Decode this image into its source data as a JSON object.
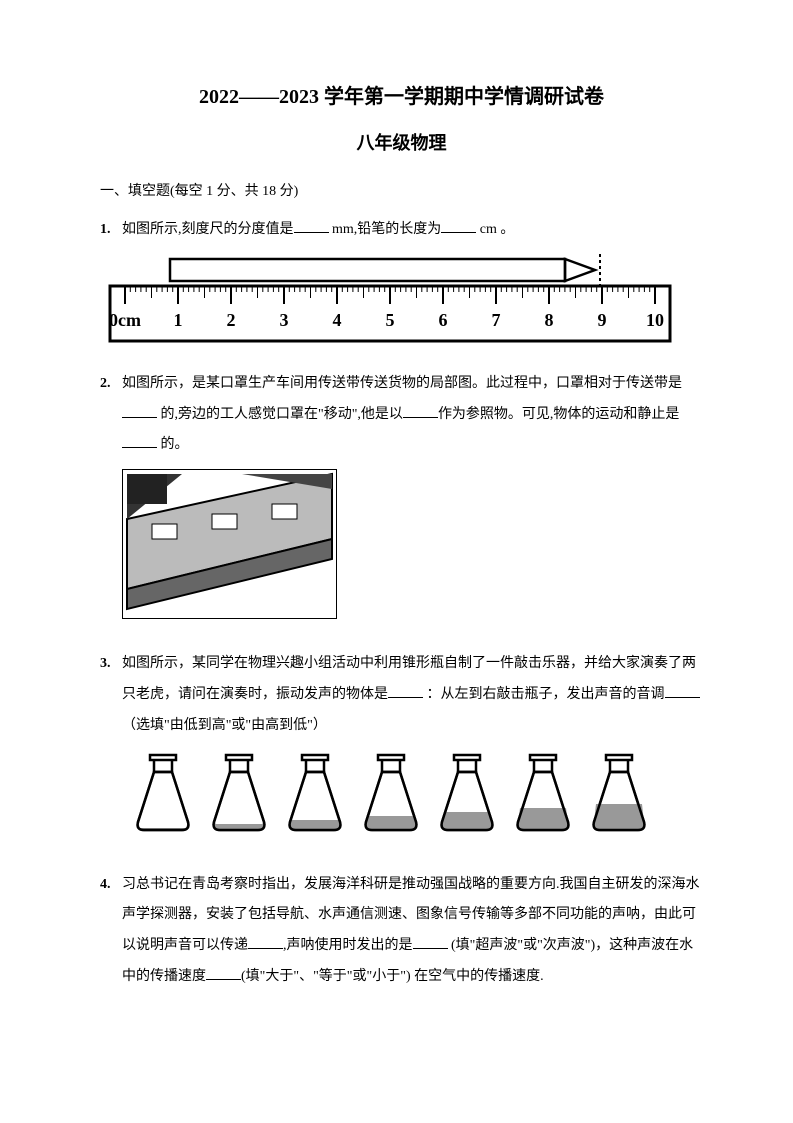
{
  "title": "2022——2023  学年第一学期期中学情调研试卷",
  "subtitle": "八年级物理",
  "section_header": "一、填空题(每空 1 分、共 18 分)",
  "q1": {
    "num": "1.",
    "text_a": "如图所示,刻度尺的分度值是",
    "unit_a": " mm,铅笔的长度为",
    "unit_b": " cm 。",
    "ruler_labels": [
      "0cm",
      "1",
      "2",
      "3",
      "4",
      "5",
      "6",
      "7",
      "8",
      "9",
      "10"
    ]
  },
  "q2": {
    "num": "2.",
    "text_a": "如图所示，是某口罩生产车间用传送带传送货物的局部图。此过程中，口罩相对于传送带是",
    "text_b": " 的,旁边的工人感觉口罩在\"移动\",他是以",
    "text_c": "作为参照物。可见,物体的运动和静止是",
    "text_d": " 的。"
  },
  "q3": {
    "num": "3.",
    "text_a": "如图所示，某同学在物理兴趣小组活动中利用锥形瓶自制了一件敲击乐器，并给大家演奏了两只老虎，请问在演奏时，振动发声的物体是",
    "text_b": "  ：从左到右敲击瓶子，发出声音的音调",
    "text_c": " （选填\"由低到高\"或\"由高到低\"）"
  },
  "q4": {
    "num": "4.",
    "text_a": "习总书记在青岛考察时指出，发展海洋科研是推动强国战略的重要方向.我国自主研发的深海水声学探测器，安装了包括导航、水声通信测速、图象信号传输等多部不同功能的声呐，由此可以说明声音可以传递",
    "text_b": ",声呐使用时发出的是",
    "text_c": " (填\"超声波\"或\"次声波\")，这种声波在水中的传播速度",
    "text_d": "(填\"大于\"、\"等于\"或\"小于\") 在空气中的传播速度."
  },
  "colors": {
    "black": "#000000",
    "white": "#ffffff",
    "gray_light": "#cccccc",
    "gray_mid": "#888888",
    "gray_dark": "#555555"
  }
}
